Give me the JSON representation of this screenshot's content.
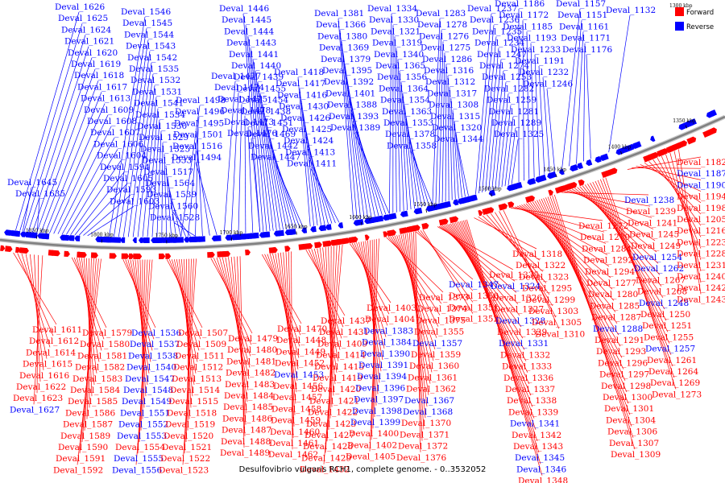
{
  "caption": "Desulfovibrio vulgaris RCH1, complete genome. - 0..3532052",
  "corner_label": "1300 kbp",
  "legend": [
    {
      "name": "Forward",
      "color": "#ff0000"
    },
    {
      "name": "Reverse",
      "color": "#0000ff"
    }
  ],
  "colors": {
    "forward": "#ff0000",
    "reverse": "#0000ff",
    "backbone": "#808080",
    "link_forward": "#ff0000",
    "link_reverse": "#0000ff"
  },
  "ticks": [
    "1850 kbp",
    "1800 kbp",
    "1750 kbp",
    "1700 kbp",
    "1650 kbp",
    "1600 kbp",
    "1550 kbp",
    "1500 kbp",
    "1450 kbp",
    "1400 kbp",
    "1350 kbp"
  ],
  "upper_labels": [
    [
      "Deval_1626",
      "Deval_1625",
      "Deval_1624",
      "Deval_1621",
      "Deval_1620",
      "Deval_1619",
      "Deval_1618",
      "Deval_1617",
      "Deval_1613",
      "Deval_1609",
      "Deval_1608",
      "Deval_1607",
      "Deval_1606",
      "Deval_1604",
      "Deval_1594",
      "Deval_1605",
      "Deval_1593",
      "Deval_1603"
    ],
    [
      "Deval_1645",
      "Deval_1635"
    ],
    [
      "Deval_1546",
      "Deval_1545",
      "Deval_1544",
      "Deval_1543",
      "Deval_1542",
      "Deval_1535",
      "Deval_1532",
      "Deval_1531",
      "Deval_1541",
      "Deval_1534",
      "Deval_1530",
      "Deval_1529",
      "Deval_1525",
      "Deval_1533",
      "Deval_1517",
      "Deval_1564",
      "Deval_1539",
      "Deval_1560",
      "Deval_1528"
    ],
    [
      "Deval_1498",
      "Deval_1496",
      "Deval_1495",
      "Deval_1501",
      "Deval_1516",
      "Deval_1494"
    ],
    [
      "Deval_1477",
      "Deval_1474",
      "Deval_1475",
      "Deval_1478",
      "Deval_1473",
      "Deval_1476"
    ],
    [
      "Deval_1446",
      "Deval_1445",
      "Deval_1444",
      "Deval_1443",
      "Deval_1441",
      "Deval_1440",
      "Deval_1439",
      "Deval_1455",
      "Deval_1454",
      "Deval_1438",
      "Deval_1451",
      "Deval_1469",
      "Deval_1442",
      "Deval_1447"
    ],
    [
      "Deval_1418",
      "Deval_1417",
      "Deval_1416",
      "Deval_1430",
      "Deval_1426",
      "Deval_1425",
      "Deval_1424",
      "Deval_1413",
      "Deval_1411"
    ],
    [
      "Deval_1381",
      "Deval_1366",
      "Deval_1380",
      "Deval_1369",
      "Deval_1379",
      "Deval_1395",
      "Deval_1392",
      "Deval_1401",
      "Deval_1388",
      "Deval_1393",
      "Deval_1389"
    ],
    [
      "Deval_1334",
      "Deval_1330",
      "Deval_1321",
      "Deval_1319",
      "Deval_1340",
      "Deval_1365",
      "Deval_1356",
      "Deval_1364",
      "Deval_1354",
      "Deval_1363",
      "Deval_1353",
      "Deval_1378",
      "Deval_1358"
    ],
    [
      "Deval_1283",
      "Deval_1278",
      "Deval_1276",
      "Deval_1275",
      "Deval_1286",
      "Deval_1316",
      "Deval_1312",
      "Deval_1317",
      "Deval_1308",
      "Deval_1315",
      "Deval_1320",
      "Deval_1344"
    ],
    [
      "Deval_1237",
      "Deval_1236",
      "Deval_1235",
      "Deval_1234",
      "Deval_1247",
      "Deval_1274",
      "Deval_1253",
      "Deval_1282",
      "Deval_1259",
      "Deval_1281",
      "Deval_1289",
      "Deval_1325"
    ],
    [
      "Deval_1186",
      "Deval_1172",
      "Deval_1185",
      "Deval_1193",
      "Deval_1233",
      "Deval_1191",
      "Deval_1232",
      "Deval_1246"
    ],
    [
      "Deval_1157",
      "Deval_1151",
      "Deval_1161",
      "Deval_1171",
      "Deval_1176"
    ],
    [
      "Deval_1132"
    ]
  ],
  "lower_labels": [
    [
      "Deval_1611",
      "Deval_1612",
      "Deval_1614",
      "Deval_1615",
      "Deval_1616",
      "Deval_1622",
      "Deval_1623",
      "Deval_1627"
    ],
    [
      "Deval_1579",
      "Deval_1580",
      "Deval_1581",
      "Deval_1582",
      "Deval_1583",
      "Deval_1584",
      "Deval_1585",
      "Deval_1586",
      "Deval_1587",
      "Deval_1589",
      "Deval_1590",
      "Deval_1591",
      "Deval_1592"
    ],
    [
      "Deval_1536",
      "Deval_1537",
      "Deval_1538",
      "Deval_1540",
      "Deval_1547",
      "Deval_1548",
      "Deval_1549",
      "Deval_1551",
      "Deval_1552",
      "Deval_1553",
      "Deval_1554",
      "Deval_1555",
      "Deval_1556"
    ],
    [
      "Deval_1507",
      "Deval_1509",
      "Deval_1511",
      "Deval_1512",
      "Deval_1513",
      "Deval_1514",
      "Deval_1515",
      "Deval_1518",
      "Deval_1519",
      "Deval_1520",
      "Deval_1521",
      "Deval_1522",
      "Deval_1523"
    ],
    [
      "Deval_1479",
      "Deval_1480",
      "Deval_1481",
      "Deval_1482",
      "Deval_1483",
      "Deval_1484",
      "Deval_1485",
      "Deval_1486",
      "Deval_1487",
      "Deval_1488",
      "Deval_1489"
    ],
    [
      "Deval_1470",
      "Deval_1448",
      "Deval_1449",
      "Deval_1452",
      "Deval_1453",
      "Deval_1456",
      "Deval_1457",
      "Deval_1458",
      "Deval_1459",
      "Deval_1460",
      "Deval_1461",
      "Deval_1462"
    ],
    [
      "Deval_1437",
      "Deval_1431",
      "Deval_1409",
      "Deval_1414",
      "Deval_1415",
      "Deval_1419",
      "Deval_1420",
      "Deval_1421",
      "Deval_1422",
      "Deval_1423",
      "Deval_1427",
      "Deval_1428",
      "Deval_1429",
      "Deval_1432"
    ],
    [
      "Deval_1403",
      "Deval_1404",
      "Deval_1383",
      "Deval_1384",
      "Deval_1390",
      "Deval_1391",
      "Deval_1394",
      "Deval_1396",
      "Deval_1397",
      "Deval_1398",
      "Deval_1399",
      "Deval_1400",
      "Deval_1402",
      "Deval_1405"
    ],
    [
      "Deval_1373",
      "Deval_1374",
      "Deval_1375",
      "Deval_1355",
      "Deval_1357",
      "Deval_1359",
      "Deval_1360",
      "Deval_1361",
      "Deval_1362",
      "Deval_1367",
      "Deval_1368",
      "Deval_1370",
      "Deval_1371",
      "Deval_1372",
      "Deval_1376"
    ],
    [
      "Deval_1347",
      "Deval_1350",
      "Deval_1351",
      "Deval_1352"
    ],
    [
      "Deval_1335",
      "Deval_1324",
      "Deval_1326",
      "Deval_1327",
      "Deval_1328",
      "Deval_1329",
      "Deval_1331",
      "Deval_1332",
      "Deval_1333",
      "Deval_1336",
      "Deval_1337",
      "Deval_1338",
      "Deval_1339",
      "Deval_1341",
      "Deval_1342",
      "Deval_1343",
      "Deval_1345",
      "Deval_1346",
      "Deval_1348"
    ],
    [
      "Deval_1318",
      "Deval_1322",
      "Deval_1323",
      "Deval_1295",
      "Deval_1299",
      "Deval_1303",
      "Deval_1305",
      "Deval_1310"
    ],
    [
      "Deval_1272",
      "Deval_1279",
      "Deval_1284",
      "Deval_1292",
      "Deval_1294",
      "Deval_1277",
      "Deval_1280",
      "Deval_1285",
      "Deval_1287",
      "Deval_1288",
      "Deval_1291",
      "Deval_1293",
      "Deval_1296",
      "Deval_1297",
      "Deval_1298",
      "Deval_1300",
      "Deval_1301",
      "Deval_1304",
      "Deval_1306",
      "Deval_1307",
      "Deval_1309"
    ],
    [
      "Deval_1238",
      "Deval_1239",
      "Deval_1241",
      "Deval_1245",
      "Deval_1249",
      "Deval_1254",
      "Deval_1262",
      "Deval_1267",
      "Deval_1268",
      "Deval_1248",
      "Deval_1250",
      "Deval_1251",
      "Deval_1255",
      "Deval_1257",
      "Deval_1261",
      "Deval_1264",
      "Deval_1269",
      "Deval_1273"
    ],
    [
      "Deval_1182",
      "Deval_1187",
      "Deval_1190",
      "Deval_1194",
      "Deval_1198",
      "Deval_1205",
      "Deval_1216",
      "Deval_1223",
      "Deval_1228",
      "Deval_1231",
      "Deval_1240",
      "Deval_1242",
      "Deval_1243"
    ]
  ]
}
